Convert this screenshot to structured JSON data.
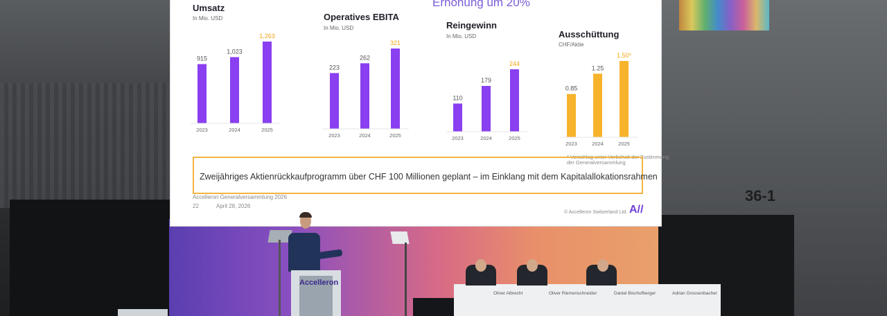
{
  "slide": {
    "headline": "Erhöhung um 20%",
    "callout": "Zweijähriges Aktienrückkaufprogramm über CHF 100 Millionen geplant – im Einklang mit dem Kapitalallokationsrahmen",
    "event": "Accelleron Generalversammlung 2026",
    "page_number": "22",
    "date": "April 28, 2026",
    "copyright": "© Accelleron Switzerland Ltd.",
    "logo": "A//",
    "footnote_line1": "* Vorschlag unter Vorbehalt der Zustimmung",
    "footnote_line2": "der Generalversammlung"
  },
  "colors": {
    "purple": "#8a3ff0",
    "orange": "#f7b32b",
    "highlight_purple": "#8a3ff0",
    "highlight_orange": "#f2a516"
  },
  "chart_data": [
    {
      "type": "bar",
      "title": "Umsatz",
      "ylabel": "In Mio. USD",
      "categories": [
        "2023",
        "2024",
        "2025"
      ],
      "values": [
        915,
        1023,
        1263
      ],
      "value_labels": [
        "915",
        "1,023",
        "1,263"
      ],
      "color": "#8a3ff0"
    },
    {
      "type": "bar",
      "title": "Operatives EBITA",
      "ylabel": "In Mio. USD",
      "categories": [
        "2023",
        "2024",
        "2025"
      ],
      "values": [
        223,
        262,
        321
      ],
      "value_labels": [
        "223",
        "262",
        "321"
      ],
      "color": "#8a3ff0"
    },
    {
      "type": "bar",
      "title": "Reingewinn",
      "ylabel": "In Mio. USD",
      "categories": [
        "2023",
        "2024",
        "2025"
      ],
      "values": [
        110,
        179,
        244
      ],
      "value_labels": [
        "110",
        "179",
        "244"
      ],
      "color": "#8a3ff0"
    },
    {
      "type": "bar",
      "title": "Ausschüttung",
      "ylabel": "CHF/Aktie",
      "categories": [
        "2023",
        "2024",
        "2025"
      ],
      "values": [
        0.85,
        1.25,
        1.5
      ],
      "value_labels": [
        "0.85",
        "1.25",
        "1.50*"
      ],
      "color": "#f7b32b"
    }
  ],
  "podium_brand": "Accelleron",
  "wall_number": "36-1",
  "panelists": [
    {
      "name": "Oliver Albrecht"
    },
    {
      "name": "Oliver Riemenschneider"
    },
    {
      "name": "Daniel Bischofberger"
    },
    {
      "name": "Adrian Grossenbacher"
    }
  ]
}
